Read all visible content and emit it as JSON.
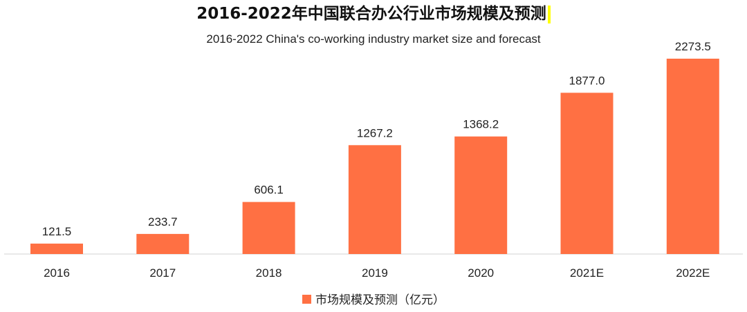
{
  "chart_data": {
    "type": "bar",
    "title": "2016-2022年中国联合办公行业市场规模及预测",
    "subtitle": "2016-2022 China's co-working industry market size and forecast",
    "categories": [
      "2016",
      "2017",
      "2018",
      "2019",
      "2020",
      "2021E",
      "2022E"
    ],
    "series": [
      {
        "name": "市场规模及预测（亿元）",
        "values": [
          121.5,
          233.7,
          606.1,
          1267.2,
          1368.2,
          1877.0,
          2273.5
        ],
        "labels": [
          "121.5",
          "233.7",
          "606.1",
          "1267.2",
          "1368.2",
          "1877.0",
          "2273.5"
        ]
      }
    ],
    "ylim": [
      0,
      2273.5
    ],
    "grid": false,
    "legend_position": "bottom-center",
    "xlabel": "",
    "ylabel": ""
  },
  "colors": {
    "bar": "#ff7043",
    "axis": "#d0d0d0",
    "label_text": "#222222"
  },
  "legend": {
    "label": "市场规模及预测（亿元）"
  }
}
